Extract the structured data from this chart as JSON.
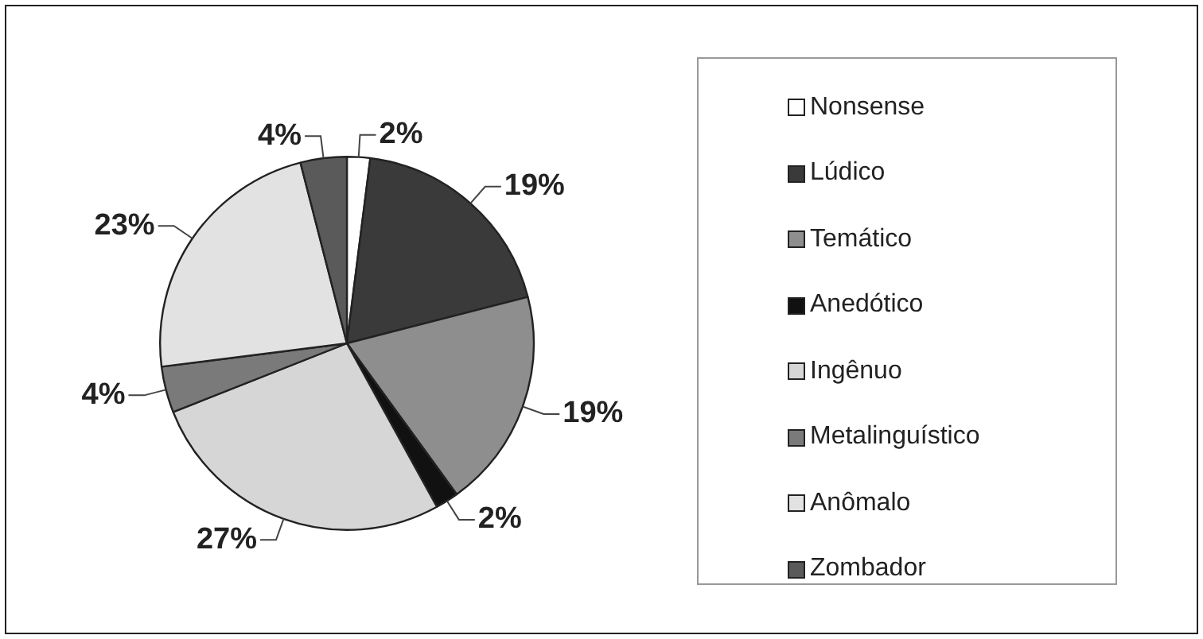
{
  "chart_data": {
    "type": "pie",
    "categories": [
      "Nonsense",
      "Lúdico",
      "Temático",
      "Anedótico",
      "Ingênuo",
      "Metalinguístico",
      "Anômalo",
      "Zombador"
    ],
    "values": [
      2,
      19,
      19,
      2,
      27,
      4,
      23,
      4
    ],
    "value_labels": [
      "2%",
      "19%",
      "19%",
      "2%",
      "27%",
      "4%",
      "23%",
      "4%"
    ],
    "colors": [
      "#ffffff",
      "#3a3a3a",
      "#8e8e8e",
      "#111111",
      "#d6d6d6",
      "#7a7a7a",
      "#e2e2e2",
      "#5a5a5a"
    ],
    "legend": "right"
  }
}
